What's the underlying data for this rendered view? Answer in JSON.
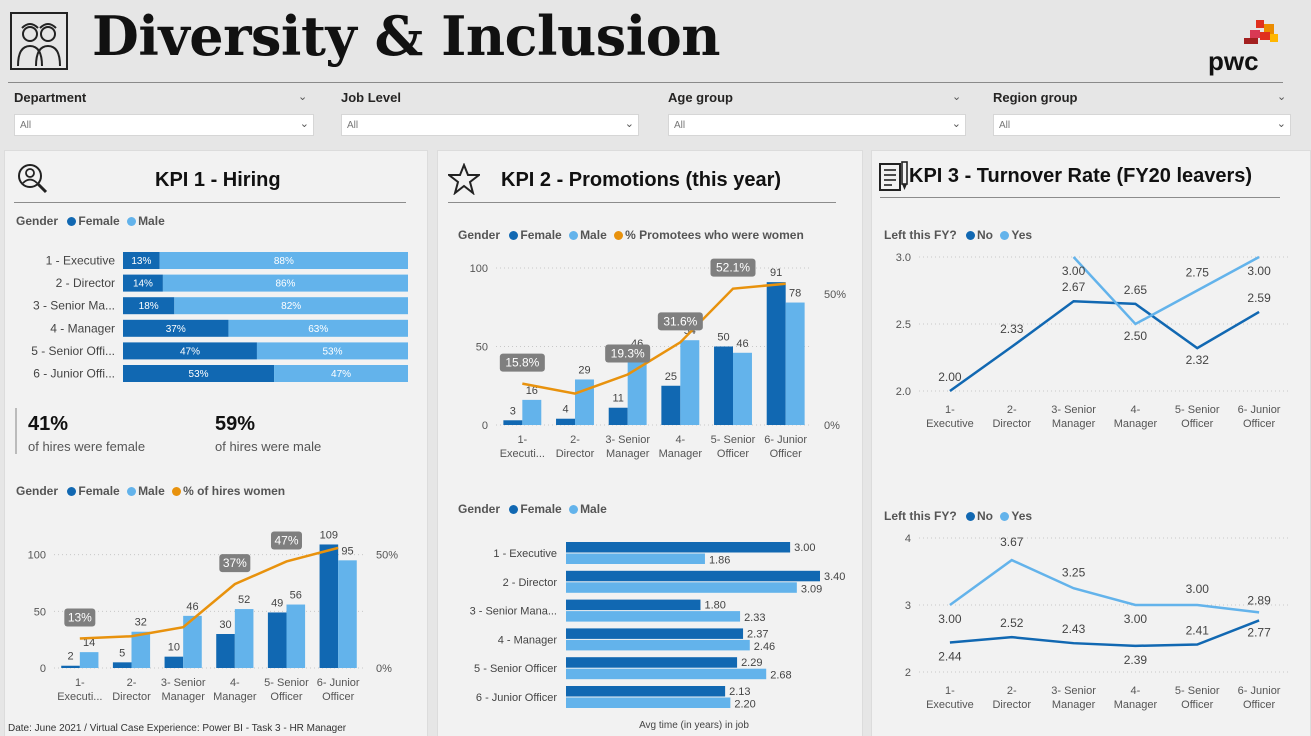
{
  "header": {
    "title": "Diversity & Inclusion",
    "logo_text": "pwc"
  },
  "slicers": [
    {
      "label": "Department",
      "value": "All"
    },
    {
      "label": "Job Level",
      "value": "All"
    },
    {
      "label": "Age group",
      "value": "All"
    },
    {
      "label": "Region group",
      "value": "All"
    }
  ],
  "kpi1": {
    "title": "KPI 1 - Hiring",
    "legend_gender": "Gender",
    "female": "Female",
    "male": "Male",
    "pct_label": "% of hires women",
    "stat_female": "41%",
    "stat_female_text": "of hires were female",
    "stat_male": "59%",
    "stat_male_text": "of hires were male"
  },
  "kpi2": {
    "title": "KPI 2 - Promotions (this year)",
    "legend_gender": "Gender",
    "female": "Female",
    "male": "Male",
    "pct_label": "% Promotees who were women",
    "axis_label": "Avg time (in years) in job"
  },
  "kpi3": {
    "title": "KPI 3 - Turnover Rate (FY20 leavers)",
    "legend_title": "Left this FY?",
    "no": "No",
    "yes": "Yes"
  },
  "colors": {
    "female": "#1168b2",
    "male": "#63b3eb",
    "pct": "#e8920d",
    "pct_label_bg": "#7f7f7f"
  },
  "footer": "Date: June 2021 / Virtual Case Experience: Power BI - Task 3 - HR Manager",
  "chart_data": [
    {
      "type": "bar",
      "title": "KPI 1 - Hiring (share by gender)",
      "categories": [
        "1 - Executive",
        "2 - Director",
        "3 - Senior Ma...",
        "4 - Manager",
        "5 - Senior Offi...",
        "6 - Junior Offi..."
      ],
      "series": [
        {
          "name": "Female",
          "values": [
            13,
            14,
            18,
            37,
            47,
            53
          ],
          "labels": [
            "13%",
            "14%",
            "18%",
            "37%",
            "47%",
            "53%"
          ]
        },
        {
          "name": "Male",
          "values": [
            88,
            86,
            82,
            63,
            53,
            47
          ],
          "labels": [
            "88%",
            "86%",
            "82%",
            "63%",
            "53%",
            "47%"
          ]
        }
      ],
      "stacked": true
    },
    {
      "type": "bar",
      "title": "KPI 1 - Hiring (counts)",
      "categories": [
        "1 - Executi...",
        "2 - Director",
        "3 - Senior Manager",
        "4 - Manager",
        "5 - Senior Officer",
        "6 - Junior Officer"
      ],
      "series": [
        {
          "name": "Female",
          "values": [
            2,
            5,
            10,
            30,
            49,
            109
          ]
        },
        {
          "name": "Male",
          "values": [
            14,
            32,
            46,
            52,
            56,
            95
          ]
        },
        {
          "name": "% of hires women",
          "values": [
            13,
            14,
            18,
            37,
            47,
            53
          ],
          "labels": [
            "13%",
            "",
            "",
            "37%",
            "47%",
            ""
          ]
        }
      ],
      "y_ticks": [
        "0",
        "50",
        "100"
      ],
      "y2_ticks": [
        "0%",
        "50%"
      ],
      "ylim": [
        0,
        120
      ],
      "y2lim": [
        0,
        60
      ]
    },
    {
      "type": "bar",
      "title": "KPI 2 - Promotions (counts)",
      "categories": [
        "1 - Executi...",
        "2 - Director",
        "3 - Senior Manager",
        "4 - Manager",
        "5 - Senior Officer",
        "6 - Junior Officer"
      ],
      "series": [
        {
          "name": "Female",
          "values": [
            3,
            4,
            11,
            25,
            50,
            91
          ]
        },
        {
          "name": "Male",
          "values": [
            16,
            29,
            46,
            54,
            46,
            78
          ]
        },
        {
          "name": "% Promotees who were women",
          "values": [
            15.8,
            12,
            19.3,
            31.6,
            52.1,
            54
          ],
          "labels": [
            "15.8%",
            "",
            "19.3%",
            "31.6%",
            "52.1%",
            ""
          ]
        }
      ],
      "y_ticks": [
        "0",
        "50",
        "100"
      ],
      "y2_ticks": [
        "0%",
        "50%"
      ],
      "ylim": [
        0,
        100
      ],
      "y2lim": [
        0,
        60
      ]
    },
    {
      "type": "bar",
      "title": "KPI 2 - Avg time in job",
      "xlabel": "Avg time (in years) in job",
      "categories": [
        "1 - Executive",
        "2 - Director",
        "3 - Senior Mana...",
        "4 - Manager",
        "5 - Senior Officer",
        "6 - Junior Officer"
      ],
      "series": [
        {
          "name": "Female",
          "values": [
            3.0,
            3.4,
            1.8,
            2.37,
            2.29,
            2.13
          ],
          "labels": [
            "3.00",
            "3.40",
            "1.80",
            "2.37",
            "2.29",
            "2.13"
          ]
        },
        {
          "name": "Male",
          "values": [
            1.86,
            3.09,
            2.33,
            2.46,
            2.68,
            2.2
          ],
          "labels": [
            "1.86",
            "3.09",
            "2.33",
            "2.46",
            "2.68",
            "2.20"
          ]
        }
      ],
      "orientation": "horizontal"
    },
    {
      "type": "line",
      "title": "KPI 3 - Turnover Rate (top)",
      "categories": [
        "1 - Executive",
        "2 - Director",
        "3 - Senior Manager",
        "4 - Manager",
        "5 - Senior Officer",
        "6 - Junior Officer"
      ],
      "series": [
        {
          "name": "No",
          "values": [
            2.0,
            2.33,
            2.67,
            2.65,
            2.32,
            2.59
          ],
          "labels": [
            "2.00",
            "2.33",
            "2.67",
            "2.65",
            "2.32",
            "2.59"
          ]
        },
        {
          "name": "Yes",
          "values": [
            null,
            null,
            3.0,
            2.5,
            2.75,
            3.0
          ],
          "labels": [
            "",
            "",
            "3.00",
            "2.50",
            "2.75",
            "3.00"
          ]
        }
      ],
      "y_ticks": [
        "2.0",
        "2.5",
        "3.0"
      ],
      "ylim": [
        2.0,
        3.0
      ]
    },
    {
      "type": "line",
      "title": "KPI 3 - Turnover Rate (bottom)",
      "categories": [
        "1 - Executive",
        "2 - Director",
        "3 - Senior Manager",
        "4 - Manager",
        "5 - Senior Officer",
        "6 - Junior Officer"
      ],
      "series": [
        {
          "name": "No",
          "values": [
            2.44,
            2.52,
            2.43,
            2.39,
            2.41,
            2.77
          ],
          "labels": [
            "2.44",
            "2.52",
            "2.43",
            "2.39",
            "2.41",
            "2.77"
          ]
        },
        {
          "name": "Yes",
          "values": [
            3.0,
            3.67,
            3.25,
            3.0,
            3.0,
            2.89
          ],
          "labels": [
            "3.00",
            "3.67",
            "3.25",
            "3.00",
            "3.00",
            "2.89"
          ]
        }
      ],
      "y_ticks": [
        "2",
        "3",
        "4"
      ],
      "ylim": [
        2,
        4
      ]
    }
  ]
}
